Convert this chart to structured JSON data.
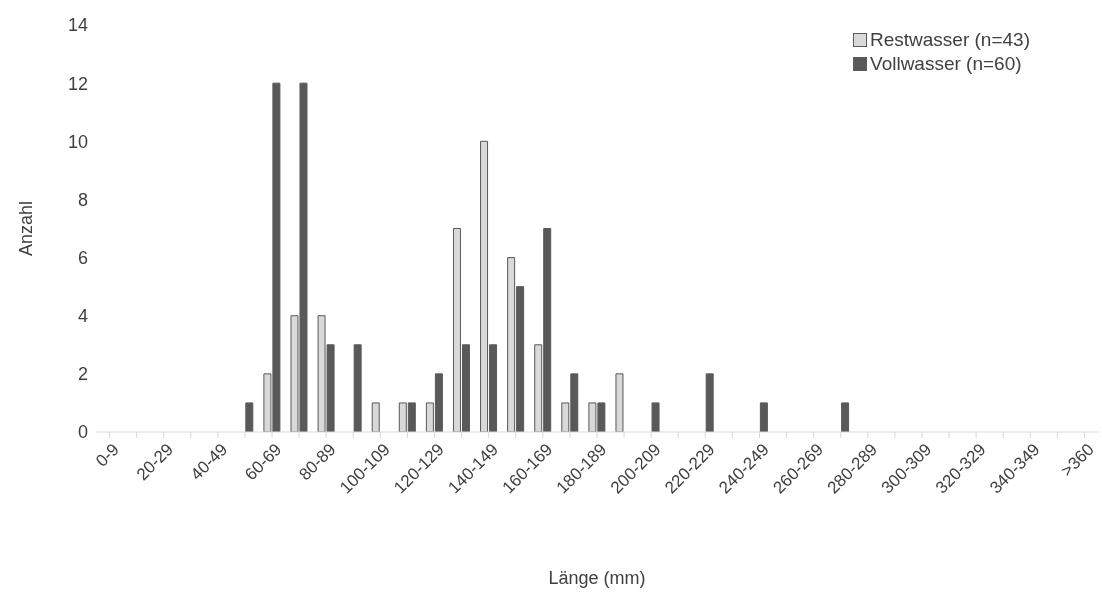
{
  "chart_data": {
    "type": "bar",
    "xlabel": "Länge (mm)",
    "ylabel": "Anzahl",
    "categories": [
      "0-9",
      null,
      "20-29",
      null,
      "40-49",
      null,
      "60-69",
      null,
      "80-89",
      null,
      "100-109",
      null,
      "120-129",
      null,
      "140-149",
      null,
      "160-169",
      null,
      "180-189",
      null,
      "200-209",
      null,
      "220-229",
      null,
      "240-249",
      null,
      "260-269",
      null,
      "280-289",
      null,
      "300-309",
      null,
      "320-329",
      null,
      "340-349",
      null,
      ">360"
    ],
    "series": [
      {
        "name": "Restwasser (n=43)",
        "color": "#d9d9d9",
        "values": [
          0,
          0,
          0,
          0,
          0,
          0,
          2,
          4,
          4,
          0,
          1,
          1,
          1,
          7,
          10,
          6,
          3,
          1,
          1,
          2,
          0,
          0,
          0,
          0,
          0,
          0,
          0,
          0,
          0,
          0,
          0,
          0,
          0,
          0,
          0,
          0,
          0
        ]
      },
      {
        "name": "Vollwasser (n=60)",
        "color": "#595959",
        "values": [
          0,
          0,
          0,
          0,
          0,
          1,
          12,
          12,
          3,
          3,
          0,
          1,
          2,
          3,
          3,
          5,
          7,
          2,
          1,
          0,
          1,
          0,
          2,
          0,
          1,
          0,
          0,
          1,
          0,
          0,
          0,
          0,
          0,
          0,
          0,
          0,
          0
        ]
      }
    ],
    "ylim": [
      0,
      14
    ],
    "yticks": [
      0,
      2,
      4,
      6,
      8,
      10,
      12,
      14
    ],
    "grid": false,
    "legend": "top right"
  }
}
